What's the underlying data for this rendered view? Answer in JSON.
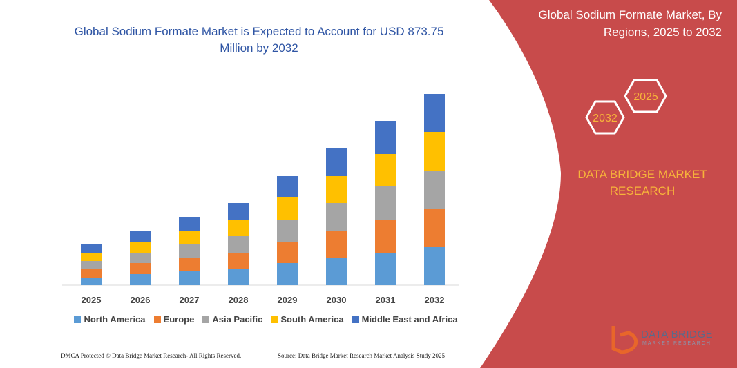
{
  "chart_data": {
    "type": "bar",
    "stacked": true,
    "title": "Global Sodium Formate Market is Expected to Account for USD 873.75 Million by 2032",
    "categories": [
      "2025",
      "2026",
      "2027",
      "2028",
      "2029",
      "2030",
      "2031",
      "2032"
    ],
    "series": [
      {
        "name": "North America",
        "color": "#5b9bd5",
        "values": [
          11,
          16,
          20,
          24,
          32,
          39,
          47,
          55
        ]
      },
      {
        "name": "Europe",
        "color": "#ed7d31",
        "values": [
          12,
          16,
          19,
          23,
          31,
          40,
          48,
          56
        ]
      },
      {
        "name": "Asia Pacific",
        "color": "#a5a5a5",
        "values": [
          12,
          15,
          20,
          24,
          32,
          40,
          48,
          55
        ]
      },
      {
        "name": "South America",
        "color": "#ffc000",
        "values": [
          12,
          16,
          20,
          24,
          32,
          39,
          47,
          56
        ]
      },
      {
        "name": "Middle East and Africa",
        "color": "#4472c4",
        "values": [
          12,
          16,
          20,
          24,
          31,
          40,
          48,
          55
        ]
      }
    ]
  },
  "panel": {
    "title": "Global Sodium Formate Market, By Regions, 2025 to 2032",
    "hexagons": [
      "2032",
      "2025"
    ],
    "brand": "DATA BRIDGE MARKET RESEARCH"
  },
  "logo": {
    "name": "DATA BRIDGE",
    "tagline": "MARKET RESEARCH"
  },
  "footer": {
    "left": "DMCA Protected © Data Bridge Market Research- All Rights Reserved.",
    "right": "Source: Data Bridge Market Research Market Analysis Study 2025"
  }
}
